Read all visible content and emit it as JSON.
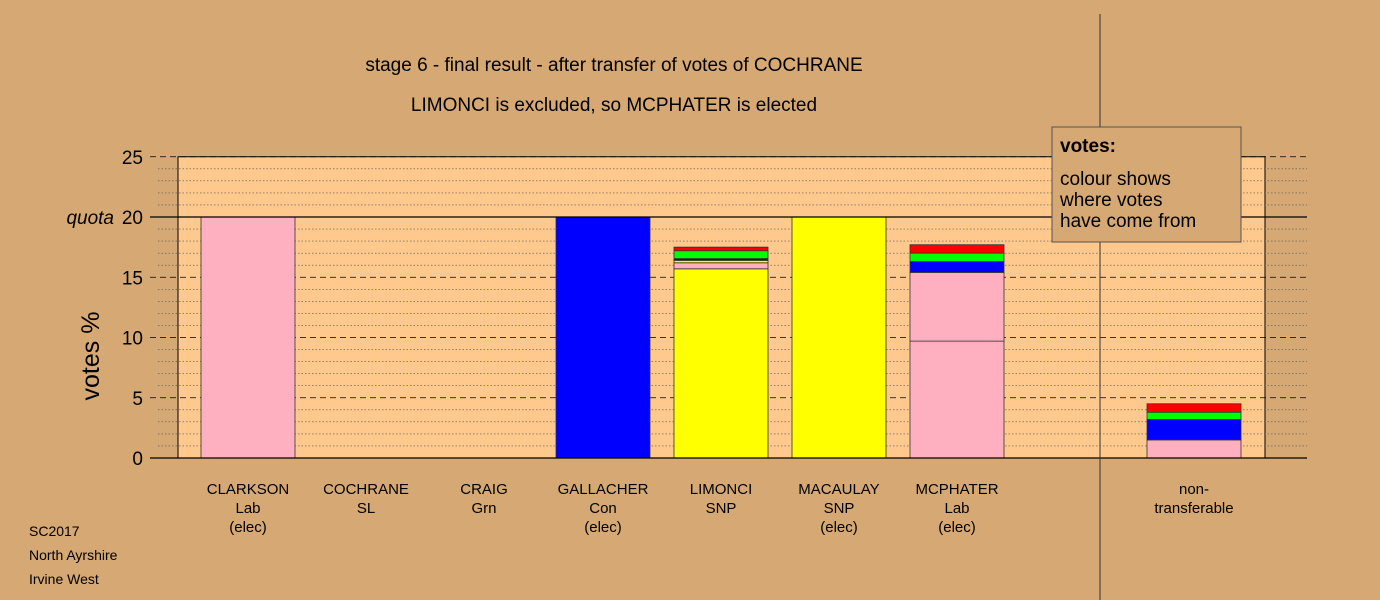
{
  "chart_data": {
    "type": "bar",
    "stacked": true,
    "title": "stage 6 - final result - after transfer of votes of COCHRANE",
    "subtitle": "LIMONCI is excluded, so MCPHATER is elected",
    "ylabel": "votes %",
    "ylim": [
      0,
      25
    ],
    "yticks": [
      "0",
      "5",
      "10",
      "15",
      "20",
      "25"
    ],
    "quota": {
      "label": "quota",
      "value": 20
    },
    "grid": true,
    "legend": {
      "position": "top-right",
      "title": "votes:",
      "lines": [
        "colour shows",
        "where votes",
        "have come from"
      ]
    },
    "categories": [
      {
        "lines": [
          "CLARKSON",
          "Lab",
          "(elec)"
        ],
        "segments": [
          {
            "value": 20.0,
            "color": "#ffb0c0"
          }
        ]
      },
      {
        "lines": [
          "COCHRANE",
          "SL"
        ],
        "segments": []
      },
      {
        "lines": [
          "CRAIG",
          "Grn"
        ],
        "segments": []
      },
      {
        "lines": [
          "GALLACHER",
          "Con",
          "(elec)"
        ],
        "segments": [
          {
            "value": 20.0,
            "color": "#0000ff"
          }
        ]
      },
      {
        "lines": [
          "LIMONCI",
          "SNP"
        ],
        "segments": [
          {
            "value": 15.7,
            "color": "#ffff00"
          },
          {
            "value": 0.5,
            "color": "#ffb0c0"
          },
          {
            "value": 0.2,
            "color": "#ffff00"
          },
          {
            "value": 0.15,
            "color": "#0000ff"
          },
          {
            "value": 0.65,
            "color": "#00ff00"
          },
          {
            "value": 0.3,
            "color": "#ff0000"
          }
        ]
      },
      {
        "lines": [
          "MACAULAY",
          "SNP",
          "(elec)"
        ],
        "segments": [
          {
            "value": 20.0,
            "color": "#ffff00"
          }
        ]
      },
      {
        "lines": [
          "MCPHATER",
          "Lab",
          "(elec)"
        ],
        "segments": [
          {
            "value": 9.7,
            "color": "#ffb0c0"
          },
          {
            "value": 5.7,
            "color": "#ffb0c0"
          },
          {
            "value": 0.9,
            "color": "#0000ff"
          },
          {
            "value": 0.7,
            "color": "#00ff00"
          },
          {
            "value": 0.7,
            "color": "#ff0000"
          }
        ]
      },
      {
        "lines": [
          "non-",
          "transferable"
        ],
        "segments": [
          {
            "value": 1.5,
            "color": "#ffb0c0"
          },
          {
            "value": 1.7,
            "color": "#0000ff"
          },
          {
            "value": 0.6,
            "color": "#00ff00"
          },
          {
            "value": 0.7,
            "color": "#ff0000"
          }
        ]
      }
    ]
  },
  "colors": {
    "background": "#d5a874",
    "plot_background": "#ffc88c",
    "pink": "#ffb0c0",
    "blue": "#0000ff",
    "yellow": "#ffff00",
    "green": "#00ff00",
    "red": "#ff0000"
  },
  "footer": {
    "election": "SC2017",
    "council": "North Ayrshire",
    "ward": "Irvine West"
  }
}
